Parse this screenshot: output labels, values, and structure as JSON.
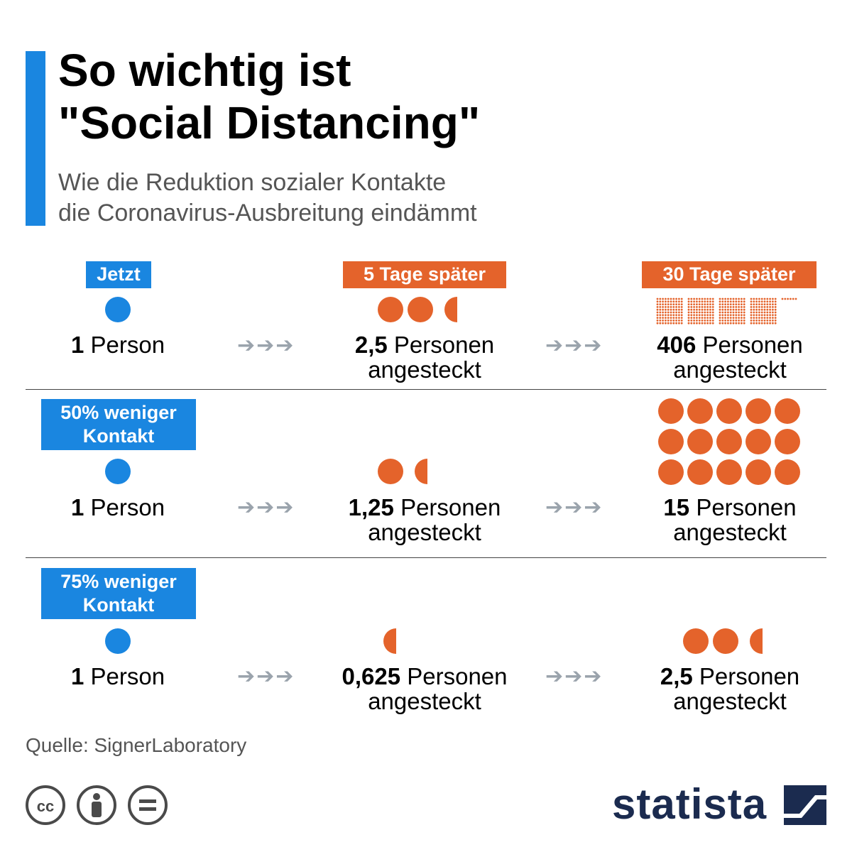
{
  "title": {
    "line1": "So wichtig ist",
    "line2": "\"Social Distancing\""
  },
  "subtitle": {
    "line1": "Wie die Reduktion sozialer Kontakte",
    "line2": "die Coronavirus-Ausbreitung eindämmt"
  },
  "columns": {
    "now": "Jetzt",
    "day5": "5 Tage später",
    "day30": "30 Tage später"
  },
  "rows": [
    {
      "label": "",
      "start_num": "1",
      "start_unit": "Person",
      "mid_num": "2,5",
      "mid_unit": "Personen",
      "end_num": "406",
      "end_unit": "Personen",
      "suffix": "angesteckt"
    },
    {
      "label_line1": "50% weniger",
      "label_line2": "Kontakt",
      "start_num": "1",
      "start_unit": "Person",
      "mid_num": "1,25",
      "mid_unit": "Personen",
      "end_num": "15",
      "end_unit": "Personen",
      "suffix": "angesteckt"
    },
    {
      "label_line1": "75% weniger",
      "label_line2": "Kontakt",
      "start_num": "1",
      "start_unit": "Person",
      "mid_num": "0,625",
      "mid_unit": "Personen",
      "end_num": "2,5",
      "end_unit": "Personen",
      "suffix": "angesteckt"
    }
  ],
  "arrows": "➔➔➔",
  "source": "Quelle: SignerLaboratory",
  "brand": "statista",
  "colors": {
    "blue": "#1a86e0",
    "orange": "#e4632b",
    "arrow": "#9aa3ac",
    "brand": "#1b2b4f"
  }
}
